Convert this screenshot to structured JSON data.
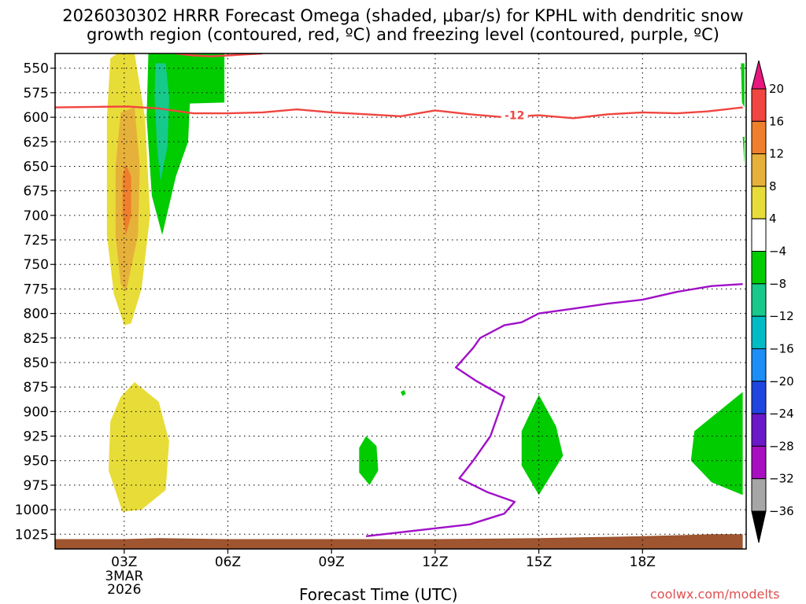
{
  "title": "2026030302 HRRR Forecast Omega (shaded, μbar/s) for KPHL with dendritic snow\ngrowth region (contoured, red, ºC) and freezing level (contoured, purple, ºC)",
  "credit": "coolwx.com/modelts",
  "chart_data": {
    "type": "contour",
    "xlabel": "Forecast Time (UTC)",
    "ylabel": "",
    "x_range_hours": [
      1,
      21
    ],
    "y_range_mb": [
      1040,
      535
    ],
    "y_axis": "pressure, inverted",
    "grid": true,
    "x_ticks": [
      {
        "h": 3,
        "label": "03Z",
        "sub": [
          "3MAR",
          "2026"
        ]
      },
      {
        "h": 6,
        "label": "06Z"
      },
      {
        "h": 9,
        "label": "09Z"
      },
      {
        "h": 12,
        "label": "12Z"
      },
      {
        "h": 15,
        "label": "15Z"
      },
      {
        "h": 18,
        "label": "18Z"
      }
    ],
    "y_ticks": [
      550,
      575,
      600,
      625,
      650,
      675,
      700,
      725,
      750,
      775,
      800,
      825,
      850,
      875,
      900,
      925,
      950,
      975,
      1000,
      1025
    ],
    "colorbar": {
      "labels": [
        "20",
        "16",
        "12",
        "8",
        "4",
        "−4",
        "−8",
        "−12",
        "−16",
        "−20",
        "−24",
        "−28",
        "−32",
        "−36"
      ],
      "bins": [
        {
          "color": "#e8177e"
        },
        {
          "color": "#f04540"
        },
        {
          "color": "#ef7f2c"
        },
        {
          "color": "#e6b13a"
        },
        {
          "color": "#e8dc38"
        },
        {
          "color": "#ffffff"
        },
        {
          "color": "#00cc00"
        },
        {
          "color": "#17c98a"
        },
        {
          "color": "#00bcc4"
        },
        {
          "color": "#1c8ef5"
        },
        {
          "color": "#1f45e0"
        },
        {
          "color": "#6a18c8"
        },
        {
          "color": "#a80fc0"
        },
        {
          "color": "#a6a6a6"
        },
        {
          "color": "#000000"
        }
      ]
    },
    "contours": [
      {
        "name": "-12",
        "color": "#f04540",
        "label": "-12",
        "label_at": {
          "h": 14.0,
          "p": 598
        },
        "points": [
          [
            1,
            590
          ],
          [
            3.1,
            589
          ],
          [
            4,
            591
          ],
          [
            5,
            596
          ],
          [
            6,
            596
          ],
          [
            7,
            595
          ],
          [
            8,
            592
          ],
          [
            9,
            595
          ],
          [
            10,
            597
          ],
          [
            11,
            599
          ],
          [
            12,
            593
          ],
          [
            13,
            597
          ],
          [
            14,
            600
          ],
          [
            15,
            598
          ],
          [
            16,
            601
          ],
          [
            17,
            597
          ],
          [
            18,
            595
          ],
          [
            19,
            596
          ],
          [
            19.9,
            594
          ],
          [
            20.9,
            590
          ]
        ]
      },
      {
        "name": "-12 top",
        "color": "#f04540",
        "label": "",
        "points": [
          [
            4.5,
            535
          ],
          [
            5.0,
            537
          ],
          [
            5.5,
            538
          ],
          [
            6.0,
            537
          ],
          [
            6.5,
            536
          ],
          [
            7,
            535
          ]
        ]
      },
      {
        "name": "freezing level",
        "color": "#a010c8",
        "label": "",
        "points": [
          [
            10.0,
            1027
          ],
          [
            11.0,
            1023
          ],
          [
            12.0,
            1019
          ],
          [
            13.0,
            1015
          ],
          [
            14.0,
            1004
          ],
          [
            14.3,
            992
          ],
          [
            13.5,
            982
          ],
          [
            12.7,
            968
          ],
          [
            13.1,
            950
          ],
          [
            13.6,
            925
          ],
          [
            14.0,
            885
          ],
          [
            13.2,
            869
          ],
          [
            12.6,
            855
          ],
          [
            13.1,
            835
          ],
          [
            13.3,
            825
          ],
          [
            14.0,
            812
          ],
          [
            14.5,
            809
          ],
          [
            15,
            800
          ],
          [
            16,
            795
          ],
          [
            17,
            790
          ],
          [
            18,
            786
          ],
          [
            19,
            778
          ],
          [
            20,
            772
          ],
          [
            20.9,
            770
          ]
        ]
      }
    ],
    "filled": [
      {
        "level": "4 to 8",
        "color": "#e8dc38",
        "points": [
          [
            2.8,
            535
          ],
          [
            3.3,
            535
          ],
          [
            3.6,
            600
          ],
          [
            3.75,
            700
          ],
          [
            3.5,
            775
          ],
          [
            3.2,
            810
          ],
          [
            3.0,
            812
          ],
          [
            2.7,
            780
          ],
          [
            2.5,
            720
          ],
          [
            2.5,
            600
          ],
          [
            2.6,
            540
          ]
        ]
      },
      {
        "level": "8 to 12",
        "color": "#e6b13a",
        "points": [
          [
            2.9,
            595
          ],
          [
            3.3,
            590
          ],
          [
            3.45,
            650
          ],
          [
            3.4,
            720
          ],
          [
            3.05,
            778
          ],
          [
            2.9,
            770
          ],
          [
            2.75,
            720
          ],
          [
            2.75,
            650
          ]
        ]
      },
      {
        "level": "12 to 16",
        "color": "#ef7f2c",
        "points": [
          [
            3.05,
            648
          ],
          [
            3.2,
            660
          ],
          [
            3.2,
            700
          ],
          [
            3.05,
            720
          ],
          [
            2.95,
            700
          ],
          [
            2.95,
            660
          ]
        ]
      },
      {
        "level": "4 to 8",
        "color": "#e8dc38",
        "points": [
          [
            2.9,
            885
          ],
          [
            3.3,
            870
          ],
          [
            4.0,
            890
          ],
          [
            4.3,
            930
          ],
          [
            4.2,
            980
          ],
          [
            3.5,
            1000
          ],
          [
            2.95,
            1002
          ],
          [
            2.55,
            960
          ],
          [
            2.6,
            910
          ]
        ]
      },
      {
        "level": "-4 to -8",
        "color": "#00cc00",
        "points": [
          [
            3.7,
            535
          ],
          [
            5.9,
            535
          ],
          [
            5.9,
            585
          ],
          [
            4.9,
            586
          ],
          [
            4.85,
            625
          ],
          [
            4.5,
            660
          ],
          [
            4.1,
            720
          ],
          [
            3.8,
            680
          ],
          [
            3.65,
            600
          ]
        ]
      },
      {
        "level": "-8 to -12",
        "color": "#17c98a",
        "points": [
          [
            3.9,
            545
          ],
          [
            4.2,
            545
          ],
          [
            4.3,
            580
          ],
          [
            4.25,
            630
          ],
          [
            4.05,
            665
          ],
          [
            3.95,
            630
          ],
          [
            3.88,
            580
          ]
        ]
      },
      {
        "level": "-4 to -8",
        "color": "#00cc00",
        "points": [
          [
            10.0,
            925
          ],
          [
            10.3,
            935
          ],
          [
            10.35,
            960
          ],
          [
            10.1,
            975
          ],
          [
            9.8,
            962
          ],
          [
            9.8,
            937
          ]
        ]
      },
      {
        "level": "-4 to -8",
        "color": "#00cc00",
        "points": [
          [
            15.0,
            883
          ],
          [
            15.5,
            915
          ],
          [
            15.7,
            945
          ],
          [
            15.0,
            985
          ],
          [
            14.5,
            955
          ],
          [
            14.5,
            920
          ]
        ]
      },
      {
        "level": "-4 to -8",
        "color": "#00cc00",
        "points": [
          [
            20.9,
            880
          ],
          [
            20.9,
            985
          ],
          [
            20.0,
            972
          ],
          [
            19.4,
            950
          ],
          [
            19.5,
            920
          ]
        ]
      },
      {
        "level": "-4 to -8",
        "color": "#00cc00",
        "points": [
          [
            20.85,
            545
          ],
          [
            20.95,
            545
          ],
          [
            20.95,
            590
          ],
          [
            20.88,
            585
          ]
        ]
      },
      {
        "level": "-4 to -8",
        "color": "#00cc00",
        "points": [
          [
            20.9,
            620
          ],
          [
            20.95,
            620
          ],
          [
            20.95,
            650
          ]
        ]
      },
      {
        "level": "-4 to -8",
        "color": "#00cc00",
        "points": [
          [
            11.0,
            880
          ],
          [
            11.1,
            878
          ],
          [
            11.15,
            882
          ],
          [
            11.05,
            884
          ]
        ]
      }
    ],
    "terrain": {
      "color": "#9e5530",
      "points": [
        [
          1,
          1030
        ],
        [
          3,
          1030
        ],
        [
          4,
          1029
        ],
        [
          6,
          1030
        ],
        [
          9,
          1030
        ],
        [
          12,
          1030
        ],
        [
          15,
          1029
        ],
        [
          18,
          1027
        ],
        [
          20,
          1025
        ],
        [
          20.9,
          1025
        ],
        [
          20.9,
          1040
        ],
        [
          1,
          1040
        ]
      ]
    }
  }
}
